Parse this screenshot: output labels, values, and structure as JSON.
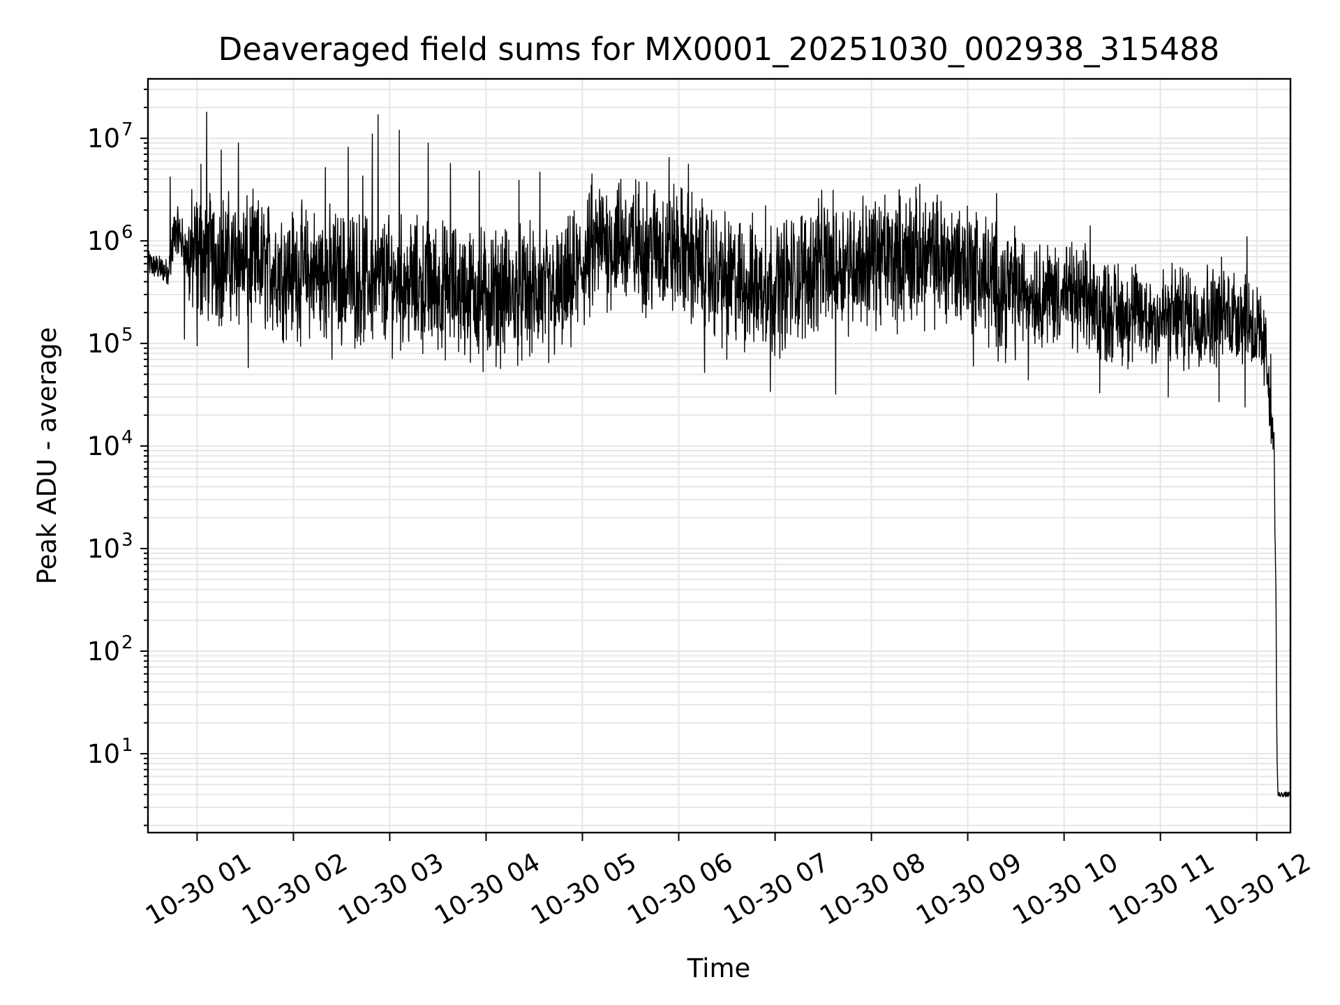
{
  "chart_data": {
    "type": "line",
    "title": "Deaveraged field sums for MX0001_20251030_002938_315488",
    "xlabel": "Time",
    "ylabel": "Peak ADU - average",
    "yscale": "log",
    "ylim": [
      1.7,
      38000000
    ],
    "y_ticks": [
      {
        "base": "10",
        "exp": "1",
        "value": 10
      },
      {
        "base": "10",
        "exp": "2",
        "value": 100
      },
      {
        "base": "10",
        "exp": "3",
        "value": 1000
      },
      {
        "base": "10",
        "exp": "4",
        "value": 10000
      },
      {
        "base": "10",
        "exp": "5",
        "value": 100000
      },
      {
        "base": "10",
        "exp": "6",
        "value": 1000000
      },
      {
        "base": "10",
        "exp": "7",
        "value": 10000000
      }
    ],
    "x_unit": "hours since 10-30 00:00",
    "xlim": [
      0.49,
      12.35
    ],
    "x_ticks": [
      {
        "label": "10-30 01",
        "value": 1
      },
      {
        "label": "10-30 02",
        "value": 2
      },
      {
        "label": "10-30 03",
        "value": 3
      },
      {
        "label": "10-30 04",
        "value": 4
      },
      {
        "label": "10-30 05",
        "value": 5
      },
      {
        "label": "10-30 06",
        "value": 6
      },
      {
        "label": "10-30 07",
        "value": 7
      },
      {
        "label": "10-30 08",
        "value": 8
      },
      {
        "label": "10-30 09",
        "value": 9
      },
      {
        "label": "10-30 10",
        "value": 10
      },
      {
        "label": "10-30 11",
        "value": 11
      },
      {
        "label": "10-30 12",
        "value": 12
      }
    ],
    "grid": true,
    "series": [
      {
        "name": "Deaveraged field sums",
        "color": "#000000",
        "trend": [
          {
            "x": 0.49,
            "y": 600000
          },
          {
            "x": 0.7,
            "y": 500000
          },
          {
            "x": 0.78,
            "y": 1400000
          },
          {
            "x": 0.9,
            "y": 700000
          },
          {
            "x": 1.2,
            "y": 700000
          },
          {
            "x": 2.0,
            "y": 500000
          },
          {
            "x": 3.0,
            "y": 400000
          },
          {
            "x": 4.0,
            "y": 300000
          },
          {
            "x": 4.8,
            "y": 300000
          },
          {
            "x": 5.2,
            "y": 1000000
          },
          {
            "x": 6.0,
            "y": 800000
          },
          {
            "x": 6.5,
            "y": 400000
          },
          {
            "x": 7.0,
            "y": 350000
          },
          {
            "x": 7.5,
            "y": 600000
          },
          {
            "x": 8.5,
            "y": 700000
          },
          {
            "x": 9.0,
            "y": 600000
          },
          {
            "x": 9.3,
            "y": 350000
          },
          {
            "x": 10.0,
            "y": 300000
          },
          {
            "x": 10.5,
            "y": 200000
          },
          {
            "x": 11.0,
            "y": 180000
          },
          {
            "x": 11.9,
            "y": 200000
          },
          {
            "x": 12.05,
            "y": 100000
          },
          {
            "x": 12.12,
            "y": 60000
          },
          {
            "x": 12.15,
            "y": 20000
          },
          {
            "x": 12.18,
            "y": 10000
          },
          {
            "x": 12.19,
            "y": 1500
          },
          {
            "x": 12.2,
            "y": 300
          },
          {
            "x": 12.21,
            "y": 10
          },
          {
            "x": 12.22,
            "y": 4
          },
          {
            "x": 12.35,
            "y": 4
          }
        ],
        "spikes": [
          {
            "x": 0.72,
            "y": 4200000
          },
          {
            "x": 1.04,
            "y": 5600000
          },
          {
            "x": 1.1,
            "y": 18000000
          },
          {
            "x": 1.25,
            "y": 7700000
          },
          {
            "x": 1.43,
            "y": 9000000
          },
          {
            "x": 2.33,
            "y": 5200000
          },
          {
            "x": 2.57,
            "y": 8200000
          },
          {
            "x": 2.72,
            "y": 4300000
          },
          {
            "x": 2.82,
            "y": 11000000
          },
          {
            "x": 2.88,
            "y": 17000000
          },
          {
            "x": 3.1,
            "y": 12000000
          },
          {
            "x": 3.4,
            "y": 9000000
          },
          {
            "x": 3.63,
            "y": 5700000
          },
          {
            "x": 3.93,
            "y": 4800000
          },
          {
            "x": 4.34,
            "y": 3900000
          },
          {
            "x": 4.56,
            "y": 4700000
          },
          {
            "x": 5.1,
            "y": 4500000
          },
          {
            "x": 5.4,
            "y": 4000000
          },
          {
            "x": 5.9,
            "y": 6500000
          },
          {
            "x": 6.1,
            "y": 5600000
          },
          {
            "x": 6.9,
            "y": 2200000
          },
          {
            "x": 7.45,
            "y": 2600000
          },
          {
            "x": 8.4,
            "y": 2600000
          },
          {
            "x": 9.3,
            "y": 2900000
          },
          {
            "x": 10.27,
            "y": 1400000
          },
          {
            "x": 11.9,
            "y": 1100000
          }
        ],
        "dips": [
          {
            "x": 0.87,
            "y": 110000
          },
          {
            "x": 1.0,
            "y": 95000
          },
          {
            "x": 1.53,
            "y": 58000
          },
          {
            "x": 2.4,
            "y": 70000
          },
          {
            "x": 3.97,
            "y": 53000
          },
          {
            "x": 4.65,
            "y": 65000
          },
          {
            "x": 6.27,
            "y": 52000
          },
          {
            "x": 6.5,
            "y": 70000
          },
          {
            "x": 6.95,
            "y": 34000
          },
          {
            "x": 7.63,
            "y": 32000
          },
          {
            "x": 9.06,
            "y": 60000
          },
          {
            "x": 9.63,
            "y": 44000
          },
          {
            "x": 10.37,
            "y": 33000
          },
          {
            "x": 11.08,
            "y": 30000
          },
          {
            "x": 11.61,
            "y": 27000
          },
          {
            "x": 11.88,
            "y": 24000
          }
        ]
      }
    ]
  }
}
